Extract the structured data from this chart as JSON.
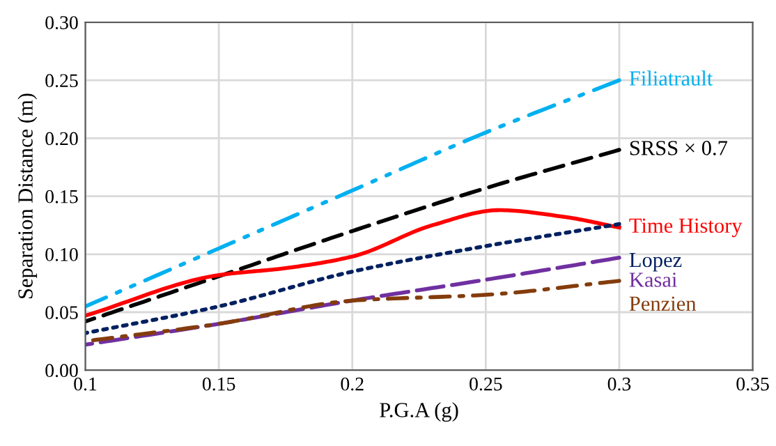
{
  "chart_data": {
    "type": "line",
    "xlabel": "P.G.A (g)",
    "ylabel": "Separation Distance (m)",
    "xlim": [
      0.1,
      0.35
    ],
    "xticks": [
      0.1,
      0.15,
      0.2,
      0.25,
      0.3,
      0.35
    ],
    "ylim": [
      0,
      0.3
    ],
    "yticks": [
      {
        "value": 0,
        "label": "0.00"
      },
      {
        "value": 0.05,
        "label": "0.05"
      },
      {
        "value": 0.1,
        "label": "0.10"
      },
      {
        "value": 0.15,
        "label": "0.15"
      },
      {
        "value": 0.2,
        "label": "0.20"
      },
      {
        "value": 0.25,
        "label": "0.25"
      },
      {
        "value": 0.3,
        "label": "0.30"
      }
    ],
    "grid": true,
    "marker": "none",
    "series": [
      {
        "name": "Filiatrault",
        "color": "#00b0f0",
        "line_style": "dashdotdot",
        "x": [
          0.1,
          0.15,
          0.2,
          0.25,
          0.3
        ],
        "values": [
          0.055,
          0.105,
          0.155,
          0.205,
          0.25
        ]
      },
      {
        "name": "SRSS × 0.7",
        "color": "#000000",
        "line_style": "dashed",
        "x": [
          0.1,
          0.15,
          0.2,
          0.25,
          0.3
        ],
        "values": [
          0.042,
          0.081,
          0.12,
          0.157,
          0.19
        ]
      },
      {
        "name": "Time History",
        "color": "#ff0000",
        "line_style": "solid",
        "x": [
          0.1,
          0.15,
          0.175,
          0.2,
          0.23,
          0.255,
          0.28,
          0.3
        ],
        "values": [
          0.047,
          0.082,
          0.088,
          0.098,
          0.125,
          0.138,
          0.132,
          0.123
        ]
      },
      {
        "name": "Lopez",
        "color": "#002060",
        "line_style": "dotted",
        "x": [
          0.1,
          0.15,
          0.2,
          0.25,
          0.3
        ],
        "values": [
          0.032,
          0.055,
          0.085,
          0.107,
          0.126
        ]
      },
      {
        "name": "Kasai",
        "color": "#7030a0",
        "line_style": "longdash",
        "x": [
          0.1,
          0.15,
          0.2,
          0.25,
          0.3
        ],
        "values": [
          0.022,
          0.04,
          0.06,
          0.078,
          0.097
        ]
      },
      {
        "name": "Penzien",
        "color": "#843c0c",
        "line_style": "dashdot",
        "x": [
          0.1,
          0.15,
          0.2,
          0.25,
          0.3
        ],
        "values": [
          0.025,
          0.04,
          0.06,
          0.065,
          0.077
        ]
      }
    ]
  }
}
